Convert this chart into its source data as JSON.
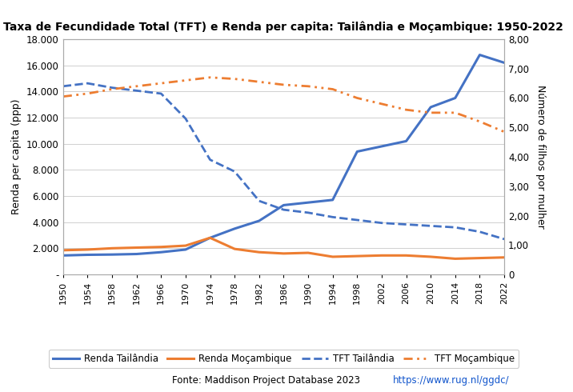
{
  "title": "Taxa de Fecundidade Total (TFT) e Renda per capita: Tailândia e Moçambique: 1950-2022",
  "years": [
    1950,
    1954,
    1958,
    1962,
    1966,
    1970,
    1974,
    1978,
    1982,
    1986,
    1990,
    1994,
    1998,
    2002,
    2006,
    2010,
    2014,
    2018,
    2022
  ],
  "renda_tailandia": [
    1450,
    1500,
    1520,
    1560,
    1700,
    1900,
    2800,
    3500,
    4100,
    5300,
    5500,
    5700,
    9400,
    9800,
    10200,
    12800,
    13500,
    16800,
    16200
  ],
  "renda_mocambique": [
    1850,
    1900,
    2000,
    2050,
    2100,
    2200,
    2800,
    1950,
    1700,
    1600,
    1650,
    1350,
    1400,
    1450,
    1450,
    1350,
    1200,
    1250,
    1300
  ],
  "tft_tailandia": [
    6.4,
    6.5,
    6.35,
    6.25,
    6.15,
    5.3,
    3.9,
    3.5,
    2.5,
    2.2,
    2.1,
    1.95,
    1.85,
    1.75,
    1.7,
    1.65,
    1.6,
    1.45,
    1.2
  ],
  "tft_mocambique": [
    6.05,
    6.15,
    6.3,
    6.4,
    6.5,
    6.6,
    6.7,
    6.65,
    6.55,
    6.45,
    6.4,
    6.3,
    6.0,
    5.8,
    5.6,
    5.5,
    5.5,
    5.2,
    4.85
  ],
  "ylabel_left": "Renda per capita (ppp)",
  "ylabel_right": "Número de filhos por mulher",
  "ylim_left": [
    0,
    18000
  ],
  "ylim_right": [
    0,
    8.0
  ],
  "color_tailandia": "#4472C4",
  "color_mocambique": "#ED7D31",
  "background_color": "#FFFFFF",
  "fonte_text": "Fonte: Maddison Project Database 2023 ",
  "fonte_url": "https://www.rug.nl/ggdc/",
  "legend_labels": [
    "Renda Tailândia",
    "Renda Moçambique",
    "TFT Tailândia",
    "TFT Moçambique"
  ],
  "yticks_left": [
    0,
    2000,
    4000,
    6000,
    8000,
    10000,
    12000,
    14000,
    16000,
    18000
  ],
  "yticks_right": [
    0,
    1.0,
    2.0,
    3.0,
    4.0,
    5.0,
    6.0,
    7.0,
    8.0
  ],
  "ytick_left_labels": [
    "-",
    "2.000",
    "4.000",
    "6.000",
    "8.000",
    "10.000",
    "12.000",
    "14.000",
    "16.000",
    "18.000"
  ],
  "ytick_right_labels": [
    "0",
    "1,00",
    "2,00",
    "3,00",
    "4,00",
    "5,00",
    "6,00",
    "7,00",
    "8,00"
  ]
}
